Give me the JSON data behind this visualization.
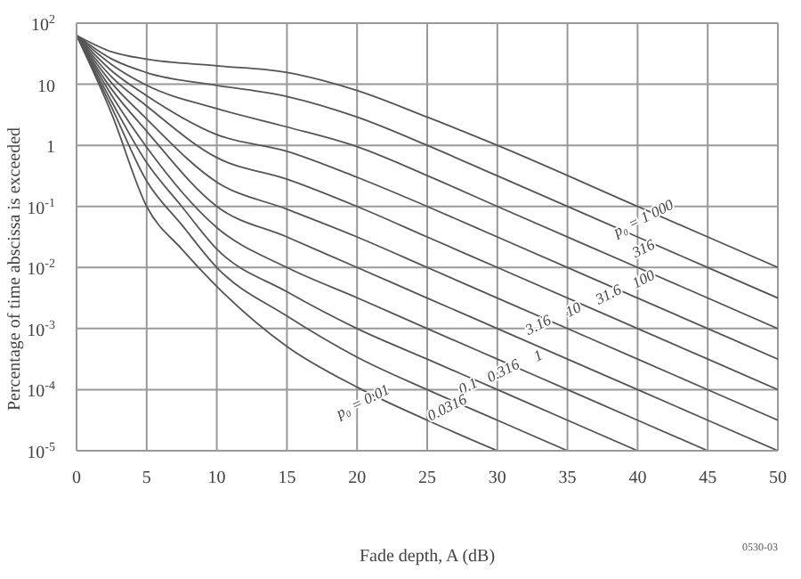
{
  "chart_data": {
    "type": "line",
    "xlabel": "Fade depth, A (dB)",
    "ylabel": "Percentage of time abscissa is exceeded",
    "log": "y",
    "grid": true,
    "marker": "none",
    "line_style": "solid",
    "xlim": [
      0,
      50
    ],
    "xticks": [
      0,
      5,
      10,
      15,
      20,
      25,
      30,
      35,
      40,
      45,
      50
    ],
    "ylim": [
      1e-05,
      100
    ],
    "yticks": [
      {
        "value": 1e-05,
        "label": "10$^{-5}$"
      },
      {
        "value": 0.0001,
        "label": "10$^{-4}$"
      },
      {
        "value": 0.001,
        "label": "10$^{-3}$"
      },
      {
        "value": 0.01,
        "label": "10$^{-2}$"
      },
      {
        "value": 0.1,
        "label": "10$^{-1}$"
      },
      1,
      10,
      {
        "value": 100,
        "label": "10$^{2}$"
      }
    ],
    "series": [
      {
        "color": "#555555",
        "x": [
          0,
          2.5,
          5,
          7.5,
          10,
          15,
          20,
          25,
          30
        ],
        "values": [
          63.2,
          3.3,
          0.1,
          0.02,
          0.0049,
          0.00051,
          0.00011,
          3.16e-05,
          1e-05
        ]
      },
      {
        "color": "#555555",
        "x": [
          0,
          2.5,
          5,
          7.5,
          10,
          15,
          20,
          25,
          30,
          35
        ],
        "values": [
          63.2,
          4.2,
          0.26,
          0.05,
          0.01,
          0.0016,
          0.00034,
          0.0001,
          3.16e-05,
          1e-05
        ]
      },
      {
        "color": "#555555",
        "x": [
          0,
          2.5,
          5,
          7.5,
          10,
          15,
          20,
          25,
          30,
          35,
          40
        ],
        "values": [
          63.2,
          5.2,
          0.52,
          0.1,
          0.02,
          0.004,
          0.001,
          0.000316,
          0.0001,
          3.16e-05,
          1e-05
        ]
      },
      {
        "color": "#555555",
        "x": [
          0,
          2.5,
          5,
          10,
          15,
          20,
          25,
          30,
          35,
          40,
          45
        ],
        "values": [
          63.2,
          6.6,
          0.93,
          0.045,
          0.01,
          0.0032,
          0.001,
          0.000316,
          0.0001,
          3.16e-05,
          1e-05
        ]
      },
      {
        "color": "#555555",
        "x": [
          0,
          2.5,
          5,
          10,
          15,
          20,
          25,
          30,
          40,
          50
        ],
        "values": [
          63.2,
          8.3,
          1.7,
          0.1,
          0.0316,
          0.01,
          0.00316,
          0.001,
          0.0001,
          1e-05
        ]
      },
      {
        "color": "#555555",
        "x": [
          0,
          2.5,
          5,
          10,
          15,
          20,
          25,
          30,
          40,
          50
        ],
        "values": [
          63.2,
          10.5,
          2.7,
          0.25,
          0.09,
          0.0316,
          0.01,
          0.00316,
          0.000316,
          3.16e-05
        ]
      },
      {
        "color": "#555555",
        "x": [
          0,
          2.5,
          5,
          10,
          15,
          20,
          25,
          30,
          40,
          50
        ],
        "values": [
          63.2,
          13.2,
          4.4,
          0.63,
          0.28,
          0.1,
          0.0316,
          0.01,
          0.001,
          0.0001
        ]
      },
      {
        "color": "#555555",
        "x": [
          0,
          2.5,
          5,
          10,
          15,
          20,
          25,
          30,
          40,
          50
        ],
        "values": [
          63.2,
          16.6,
          6.5,
          1.5,
          0.8,
          0.3,
          0.1,
          0.0316,
          0.00316,
          0.000316
        ]
      },
      {
        "color": "#555555",
        "x": [
          0,
          2.5,
          5,
          10,
          15,
          20,
          25,
          30,
          40,
          50
        ],
        "values": [
          63.2,
          21,
          9.6,
          4,
          2,
          0.95,
          0.32,
          0.1,
          0.01,
          0.001
        ]
      },
      {
        "color": "#555555",
        "x": [
          0,
          2.5,
          5,
          10,
          15,
          20,
          25,
          30,
          40,
          50
        ],
        "values": [
          63.2,
          26,
          15.5,
          9.6,
          6.3,
          2.9,
          1.0,
          0.316,
          0.0316,
          0.00316
        ]
      },
      {
        "color": "#555555",
        "x": [
          0,
          2.5,
          5,
          10,
          15,
          20,
          25,
          30,
          40,
          50
        ],
        "values": [
          63.2,
          34,
          25.7,
          20,
          15.6,
          7.9,
          2.9,
          1.0,
          0.1,
          0.01
        ]
      }
    ],
    "annotations": [
      {
        "text": "p₀ = 1 000",
        "x": 40,
        "y": 0.1
      },
      {
        "text": "316",
        "x": 40,
        "y": 0.0316
      },
      {
        "text": "100",
        "x": 40,
        "y": 0.01
      },
      {
        "text": "31.6",
        "x": 37.5,
        "y": 0.0056
      },
      {
        "text": "10",
        "x": 35,
        "y": 0.00316
      },
      {
        "text": "3.16",
        "x": 32.5,
        "y": 0.00178
      },
      {
        "text": "1",
        "x": 32.5,
        "y": 0.00056
      },
      {
        "text": "0.316",
        "x": 30,
        "y": 0.000316
      },
      {
        "text": "0.1",
        "x": 27.5,
        "y": 0.000178
      },
      {
        "text": "0.0316",
        "x": 26,
        "y": 7.9e-05
      },
      {
        "text": "p₀ = 0.01",
        "x": 20,
        "y": 0.0001
      },
      "0530-03"
    ]
  }
}
